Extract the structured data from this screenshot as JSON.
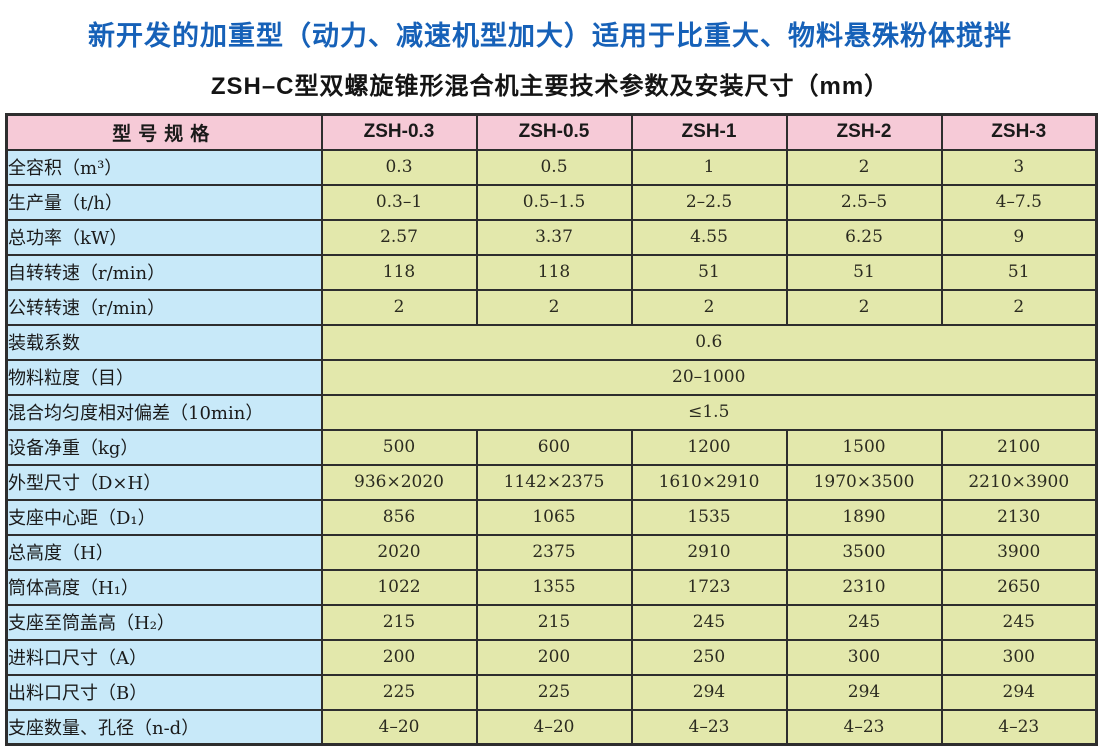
{
  "page": {
    "title_primary": "新开发的加重型（动力、减速机型加大）适用于比重大、物料悬殊粉体搅拌",
    "title_secondary": "ZSH–C型双螺旋锥形混合机主要技术参数及安装尺寸（mm）"
  },
  "colors": {
    "title_blue": "#1661b8",
    "header_pink": "#f6cad7",
    "label_blue": "#c8e9f9",
    "value_green": "#e3e8ac",
    "border": "#2e2e2e"
  },
  "table": {
    "header": [
      "型号规格",
      "ZSH-0.3",
      "ZSH-0.5",
      "ZSH-1",
      "ZSH-2",
      "ZSH-3"
    ],
    "rows": [
      {
        "label": "全容积（m³）",
        "values": [
          "0.3",
          "0.5",
          "1",
          "2",
          "3"
        ]
      },
      {
        "label": "生产量（t/h）",
        "values": [
          "0.3–1",
          "0.5–1.5",
          "2–2.5",
          "2.5–5",
          "4–7.5"
        ]
      },
      {
        "label": "总功率（kW）",
        "values": [
          "2.57",
          "3.37",
          "4.55",
          "6.25",
          "9"
        ]
      },
      {
        "label": "自转转速（r/min）",
        "values": [
          "118",
          "118",
          "51",
          "51",
          "51"
        ]
      },
      {
        "label": "公转转速（r/min）",
        "values": [
          "2",
          "2",
          "2",
          "2",
          "2"
        ]
      },
      {
        "label": "装载系数",
        "merged": "0.6"
      },
      {
        "label": "物料粒度（目）",
        "merged": "20–1000"
      },
      {
        "label": "混合均匀度相对偏差（10min）",
        "merged": "≤1.5"
      },
      {
        "label": "设备净重（kg）",
        "values": [
          "500",
          "600",
          "1200",
          "1500",
          "2100"
        ]
      },
      {
        "label": "外型尺寸（D×H）",
        "values": [
          "936×2020",
          "1142×2375",
          "1610×2910",
          "1970×3500",
          "2210×3900"
        ]
      },
      {
        "label": "支座中心距（D₁）",
        "values": [
          "856",
          "1065",
          "1535",
          "1890",
          "2130"
        ]
      },
      {
        "label": "总高度（H）",
        "values": [
          "2020",
          "2375",
          "2910",
          "3500",
          "3900"
        ]
      },
      {
        "label": "筒体高度（H₁）",
        "values": [
          "1022",
          "1355",
          "1723",
          "2310",
          "2650"
        ]
      },
      {
        "label": "支座至筒盖高（H₂）",
        "values": [
          "215",
          "215",
          "245",
          "245",
          "245"
        ]
      },
      {
        "label": "进料口尺寸（A）",
        "values": [
          "200",
          "200",
          "250",
          "300",
          "300"
        ]
      },
      {
        "label": "出料口尺寸（B）",
        "values": [
          "225",
          "225",
          "294",
          "294",
          "294"
        ]
      },
      {
        "label": "支座数量、孔径（n-d）",
        "values": [
          "4–20",
          "4–20",
          "4–23",
          "4–23",
          "4–23"
        ]
      }
    ]
  }
}
